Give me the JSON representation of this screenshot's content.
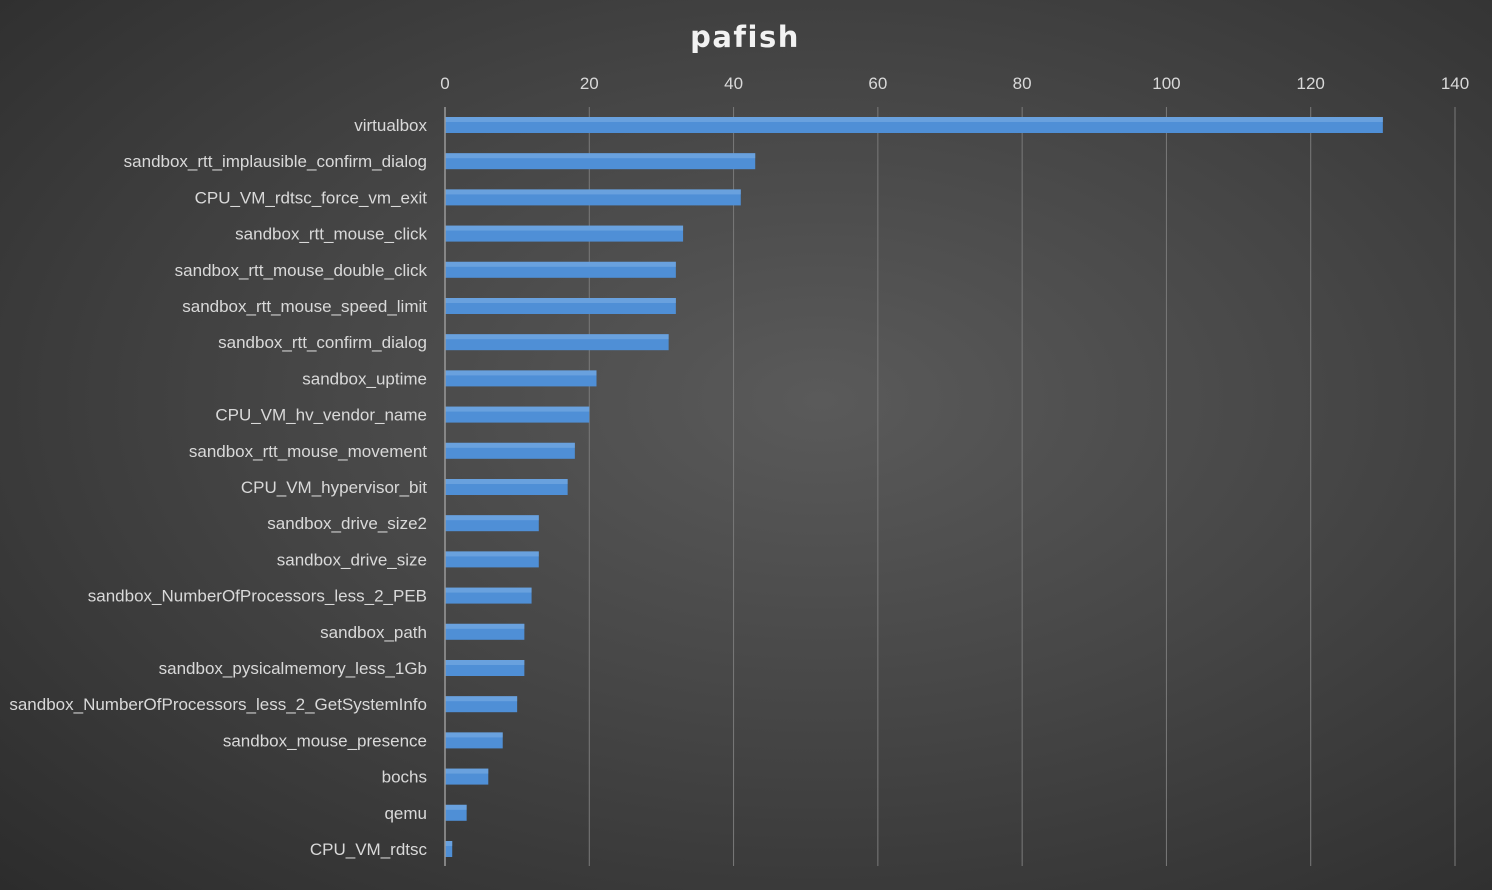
{
  "chart_data": {
    "type": "bar",
    "orientation": "horizontal",
    "title": "pafish",
    "xlabel": "",
    "ylabel": "",
    "xlim": [
      0,
      140
    ],
    "x_ticks": [
      0,
      20,
      40,
      60,
      80,
      100,
      120,
      140
    ],
    "grid": true,
    "legend": "none",
    "bar_color": "#4f8fd6",
    "categories": [
      "virtualbox",
      "sandbox_rtt_implausible_confirm_dialog",
      "CPU_VM_rdtsc_force_vm_exit",
      "sandbox_rtt_mouse_click",
      "sandbox_rtt_mouse_double_click",
      "sandbox_rtt_mouse_speed_limit",
      "sandbox_rtt_confirm_dialog",
      "sandbox_uptime",
      "CPU_VM_hv_vendor_name",
      "sandbox_rtt_mouse_movement",
      "CPU_VM_hypervisor_bit",
      "sandbox_drive_size2",
      "sandbox_drive_size",
      "sandbox_NumberOfProcessors_less_2_PEB",
      "sandbox_path",
      "sandbox_pysicalmemory_less_1Gb",
      "sandbox_NumberOfProcessors_less_2_GetSystemInfo",
      "sandbox_mouse_presence",
      "bochs",
      "qemu",
      "CPU_VM_rdtsc"
    ],
    "values": [
      130,
      43,
      41,
      33,
      32,
      32,
      31,
      21,
      20,
      18,
      17,
      13,
      13,
      12,
      11,
      11,
      10,
      8,
      6,
      3,
      1
    ]
  }
}
